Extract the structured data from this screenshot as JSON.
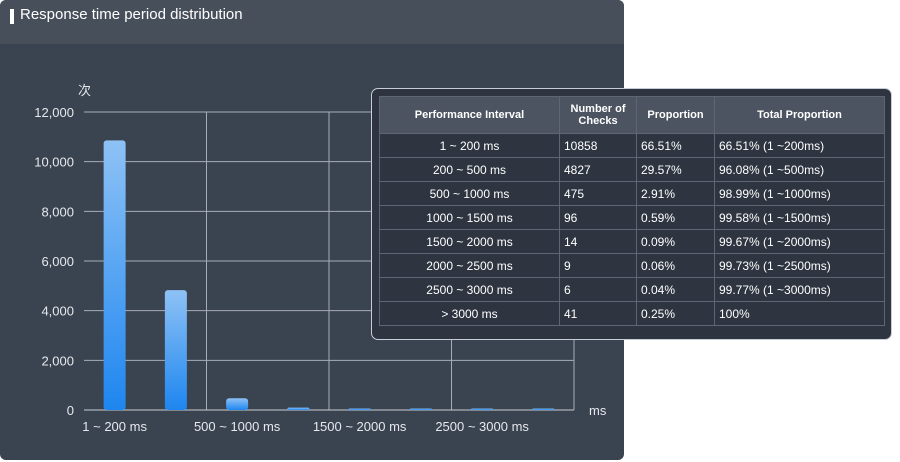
{
  "panel": {
    "title": "Response time period distribution"
  },
  "chart_data": {
    "type": "bar",
    "title": "Response time period distribution",
    "ylabel": "次",
    "xlabel": "ms",
    "ylim": [
      0,
      12000
    ],
    "yticks": [
      "0",
      "2,000",
      "4,000",
      "6,000",
      "8,000",
      "10,000",
      "12,000"
    ],
    "categories": [
      "1 ~ 200 ms",
      "200 ~ 500 ms",
      "500 ~ 1000 ms",
      "1000 ~ 1500 ms",
      "1500 ~ 2000 ms",
      "2000 ~ 2500 ms",
      "2500 ~ 3000 ms",
      "> 3000 ms"
    ],
    "xtick_labels": [
      "1 ~ 200 ms",
      "500 ~ 1000 ms",
      "1500 ~ 2000 ms",
      "2500 ~ 3000 ms"
    ],
    "values": [
      10858,
      4827,
      475,
      96,
      14,
      9,
      6,
      41
    ],
    "grid": true,
    "bar_color_top": "#8ec2f5",
    "bar_color_bottom": "#1e86f0"
  },
  "table": {
    "headers": [
      "Performance Interval",
      "Number of Checks",
      "Proportion",
      "Total Proportion"
    ],
    "rows": [
      [
        "1 ~ 200 ms",
        "10858",
        "66.51%",
        "66.51% (1 ~200ms)"
      ],
      [
        "200 ~ 500 ms",
        "4827",
        "29.57%",
        "96.08% (1 ~500ms)"
      ],
      [
        "500 ~ 1000 ms",
        "475",
        "2.91%",
        "98.99% (1 ~1000ms)"
      ],
      [
        "1000 ~ 1500 ms",
        "96",
        "0.59%",
        "99.58% (1 ~1500ms)"
      ],
      [
        "1500 ~ 2000 ms",
        "14",
        "0.09%",
        "99.67% (1 ~2000ms)"
      ],
      [
        "2000 ~ 2500 ms",
        "9",
        "0.06%",
        "99.73% (1 ~2500ms)"
      ],
      [
        "2500 ~ 3000 ms",
        "6",
        "0.04%",
        "99.77% (1 ~3000ms)"
      ],
      [
        "> 3000 ms",
        "41",
        "0.25%",
        "100%"
      ]
    ]
  }
}
